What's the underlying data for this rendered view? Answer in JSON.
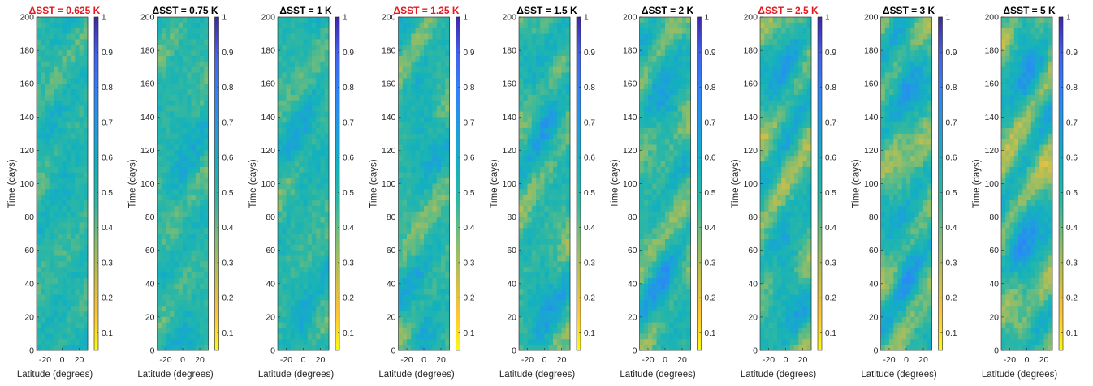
{
  "figure": {
    "xlabel": "Latitude (degrees)",
    "ylabel": "Time (days)"
  },
  "colors": {
    "highlight_title": "#e8171e",
    "normal_title": "#000000",
    "colormap": [
      "#f9fb0e",
      "#fec338",
      "#c3be4d",
      "#7fbd72",
      "#2eb7a3",
      "#13b1be",
      "#1f9ce1",
      "#2f82fa",
      "#4360ec",
      "#3e26a8"
    ]
  },
  "chart_data": [
    {
      "type": "heatmap",
      "title": "ΔSST = 0.625 K",
      "highlight": true,
      "contrast": 0.45,
      "seed": 1
    },
    {
      "type": "heatmap",
      "title": "ΔSST = 0.75 K",
      "highlight": false,
      "contrast": 0.55,
      "seed": 2
    },
    {
      "type": "heatmap",
      "title": "ΔSST = 1 K",
      "highlight": false,
      "contrast": 0.6,
      "seed": 3
    },
    {
      "type": "heatmap",
      "title": "ΔSST = 1.25 K",
      "highlight": true,
      "contrast": 0.75,
      "seed": 4
    },
    {
      "type": "heatmap",
      "title": "ΔSST = 1.5 K",
      "highlight": false,
      "contrast": 0.85,
      "seed": 5
    },
    {
      "type": "heatmap",
      "title": "ΔSST = 2 K",
      "highlight": false,
      "contrast": 1.0,
      "seed": 6
    },
    {
      "type": "heatmap",
      "title": "ΔSST = 2.5 K",
      "highlight": true,
      "contrast": 1.1,
      "seed": 7
    },
    {
      "type": "heatmap",
      "title": "ΔSST = 3 K",
      "highlight": false,
      "contrast": 1.1,
      "seed": 8
    },
    {
      "type": "heatmap",
      "title": "ΔSST = 5 K",
      "highlight": false,
      "contrast": 1.3,
      "seed": 9
    }
  ],
  "axes": {
    "x_ticks": [
      -20,
      0,
      20
    ],
    "x_tick_labels": [
      "-20",
      "0",
      "20"
    ],
    "xlim": [
      -30,
      30
    ],
    "y_ticks": [
      0,
      20,
      40,
      60,
      80,
      100,
      120,
      140,
      160,
      180,
      200
    ],
    "y_tick_labels": [
      "0",
      "20",
      "40",
      "60",
      "80",
      "100",
      "120",
      "140",
      "160",
      "180",
      "200"
    ],
    "ylim": [
      0,
      200
    ],
    "colorbar_ticks": [
      0.1,
      0.2,
      0.3,
      0.4,
      0.5,
      0.6,
      0.7,
      0.8,
      0.9,
      1
    ],
    "colorbar_tick_labels": [
      "0.1",
      "0.2",
      "0.3",
      "0.4",
      "0.5",
      "0.6",
      "0.7",
      "0.8",
      "0.9",
      "1"
    ],
    "clim": [
      0.05,
      1
    ]
  }
}
